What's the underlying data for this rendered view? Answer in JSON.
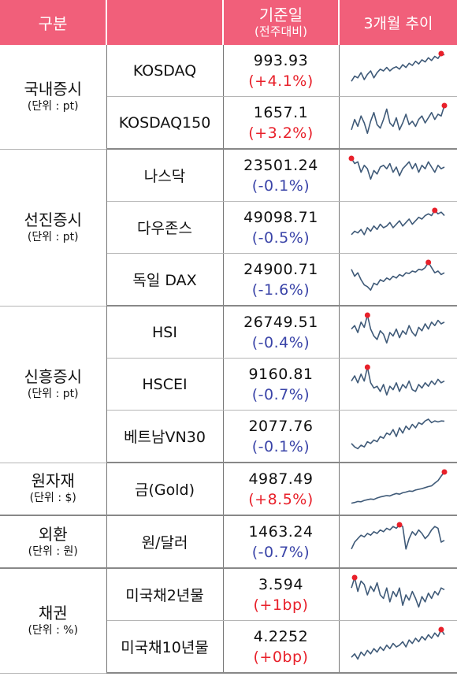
{
  "header": {
    "category": "구분",
    "base_date": "기준일",
    "wow": "(전주대비)",
    "trend": "3개월 추이"
  },
  "colors": {
    "header_bg": "#f15f7a",
    "up": "#e8202a",
    "down": "#3a44a8",
    "line": "#3f5a78",
    "marker": "#e8202a"
  },
  "groups": [
    {
      "name": "국내증시",
      "unit": "(단위 : pt)",
      "rows": [
        {
          "name": "KOSDAQ",
          "value": "993.93",
          "change": "(+4.1%)",
          "dir": "up",
          "trend": [
            0.2,
            0.35,
            0.3,
            0.45,
            0.25,
            0.4,
            0.5,
            0.3,
            0.45,
            0.55,
            0.5,
            0.6,
            0.5,
            0.58,
            0.62,
            0.55,
            0.68,
            0.6,
            0.72,
            0.66,
            0.78,
            0.7,
            0.82,
            0.76,
            0.88,
            0.8,
            0.92,
            0.86,
            1.0,
            0.96
          ],
          "marker": "end"
        },
        {
          "name": "KOSDAQ150",
          "value": "1657.1",
          "change": "(+3.2%)",
          "dir": "up",
          "trend": [
            0.3,
            0.6,
            0.4,
            0.7,
            0.5,
            0.2,
            0.55,
            0.8,
            0.45,
            0.35,
            0.6,
            0.9,
            0.5,
            0.4,
            0.65,
            0.3,
            0.5,
            0.75,
            0.45,
            0.55,
            0.4,
            0.6,
            0.7,
            0.5,
            0.65,
            0.8,
            0.6,
            0.75,
            0.7,
            1.0
          ],
          "marker": "end"
        }
      ]
    },
    {
      "name": "선진증시",
      "unit": "(단위 : pt)",
      "rows": [
        {
          "name": "나스닥",
          "value": "23501.24",
          "change": "(-0.1%)",
          "dir": "dn",
          "trend": [
            1.0,
            0.85,
            0.9,
            0.6,
            0.8,
            0.7,
            0.4,
            0.65,
            0.55,
            0.75,
            0.8,
            0.7,
            0.85,
            0.6,
            0.75,
            0.5,
            0.7,
            0.8,
            0.9,
            0.7,
            0.85,
            0.6,
            0.8,
            0.7,
            0.9,
            0.75,
            0.6,
            0.8,
            0.7,
            0.75
          ],
          "marker": "start"
        },
        {
          "name": "다우존스",
          "value": "49098.71",
          "change": "(-0.5%)",
          "dir": "dn",
          "trend": [
            0.3,
            0.4,
            0.35,
            0.45,
            0.3,
            0.5,
            0.4,
            0.55,
            0.45,
            0.6,
            0.5,
            0.55,
            0.65,
            0.5,
            0.6,
            0.7,
            0.55,
            0.65,
            0.75,
            0.6,
            0.7,
            0.8,
            0.75,
            0.85,
            0.9,
            0.85,
            1.0,
            0.9,
            0.95,
            0.85
          ],
          "marker": "peak"
        },
        {
          "name": "독일 DAX",
          "value": "24900.71",
          "change": "(-1.6%)",
          "dir": "dn",
          "trend": [
            0.8,
            0.6,
            0.7,
            0.5,
            0.35,
            0.3,
            0.2,
            0.4,
            0.35,
            0.5,
            0.45,
            0.55,
            0.5,
            0.6,
            0.55,
            0.65,
            0.6,
            0.7,
            0.68,
            0.75,
            0.72,
            0.8,
            0.78,
            0.85,
            1.0,
            0.85,
            0.7,
            0.75,
            0.65,
            0.7
          ],
          "marker": "peak"
        }
      ]
    },
    {
      "name": "신흥증시",
      "unit": "(단위 : pt)",
      "rows": [
        {
          "name": "HSI",
          "value": "26749.51",
          "change": "(-0.4%)",
          "dir": "dn",
          "trend": [
            0.6,
            0.7,
            0.5,
            0.8,
            0.65,
            1.0,
            0.6,
            0.4,
            0.3,
            0.55,
            0.45,
            0.2,
            0.5,
            0.4,
            0.6,
            0.35,
            0.55,
            0.45,
            0.7,
            0.5,
            0.4,
            0.65,
            0.55,
            0.75,
            0.6,
            0.8,
            0.7,
            0.85,
            0.75,
            0.8
          ],
          "marker": "peak"
        },
        {
          "name": "HSCEI",
          "value": "9160.81",
          "change": "(-0.7%)",
          "dir": "dn",
          "trend": [
            0.6,
            0.75,
            0.55,
            0.8,
            0.6,
            1.0,
            0.55,
            0.4,
            0.45,
            0.3,
            0.5,
            0.2,
            0.45,
            0.35,
            0.55,
            0.3,
            0.5,
            0.4,
            0.6,
            0.35,
            0.3,
            0.5,
            0.4,
            0.55,
            0.45,
            0.6,
            0.5,
            0.65,
            0.55,
            0.6
          ],
          "marker": "peak"
        },
        {
          "name": "베트남VN30",
          "value": "2077.76",
          "change": "(-0.1%)",
          "dir": "dn",
          "trend": [
            0.3,
            0.2,
            0.15,
            0.25,
            0.2,
            0.35,
            0.3,
            0.4,
            0.35,
            0.5,
            0.45,
            0.6,
            0.55,
            0.7,
            0.5,
            0.75,
            0.6,
            0.8,
            0.7,
            0.85,
            0.75,
            0.9,
            0.85,
            0.95,
            1.0,
            0.9,
            0.95,
            0.92,
            0.95,
            0.94
          ],
          "marker": "none"
        }
      ]
    },
    {
      "name": "원자재",
      "unit": "(단위 : $)",
      "rows": [
        {
          "name": "금(Gold)",
          "value": "4987.49",
          "change": "(+8.5%)",
          "dir": "up",
          "trend": [
            0.1,
            0.12,
            0.15,
            0.14,
            0.18,
            0.2,
            0.22,
            0.21,
            0.25,
            0.28,
            0.3,
            0.32,
            0.31,
            0.35,
            0.38,
            0.36,
            0.4,
            0.42,
            0.45,
            0.44,
            0.48,
            0.5,
            0.52,
            0.55,
            0.58,
            0.6,
            0.68,
            0.75,
            0.88,
            1.0
          ],
          "marker": "end"
        }
      ]
    },
    {
      "name": "외환",
      "unit": "(단위 : 원)",
      "rows": [
        {
          "name": "원/달러",
          "value": "1463.24",
          "change": "(-0.7%)",
          "dir": "dn",
          "trend": [
            0.3,
            0.5,
            0.6,
            0.7,
            0.65,
            0.75,
            0.7,
            0.8,
            0.75,
            0.85,
            0.8,
            0.9,
            0.85,
            0.95,
            0.9,
            1.0,
            0.95,
            0.3,
            0.6,
            0.8,
            0.7,
            0.85,
            0.75,
            0.6,
            0.7,
            0.85,
            0.95,
            0.9,
            0.5,
            0.55
          ],
          "marker": "peak"
        }
      ]
    },
    {
      "name": "채권",
      "unit": "(단위 : %)",
      "rows": [
        {
          "name": "미국채2년물",
          "value": "3.594",
          "change": "(+1bp)",
          "dir": "up",
          "trend": [
            0.7,
            1.0,
            0.6,
            0.9,
            0.8,
            0.5,
            0.75,
            0.6,
            0.85,
            0.5,
            0.4,
            0.7,
            0.3,
            0.6,
            0.45,
            0.7,
            0.2,
            0.5,
            0.35,
            0.6,
            0.4,
            0.15,
            0.45,
            0.3,
            0.55,
            0.4,
            0.6,
            0.5,
            0.7,
            0.65
          ],
          "marker": "peak"
        },
        {
          "name": "미국채10년물",
          "value": "4.2252",
          "change": "(+0bp)",
          "dir": "up",
          "trend": [
            0.2,
            0.3,
            0.15,
            0.35,
            0.25,
            0.4,
            0.3,
            0.45,
            0.35,
            0.5,
            0.4,
            0.55,
            0.45,
            0.6,
            0.5,
            0.55,
            0.65,
            0.5,
            0.7,
            0.6,
            0.75,
            0.65,
            0.8,
            0.7,
            0.85,
            0.75,
            0.9,
            0.8,
            1.0,
            0.85
          ],
          "marker": "end"
        }
      ]
    }
  ]
}
